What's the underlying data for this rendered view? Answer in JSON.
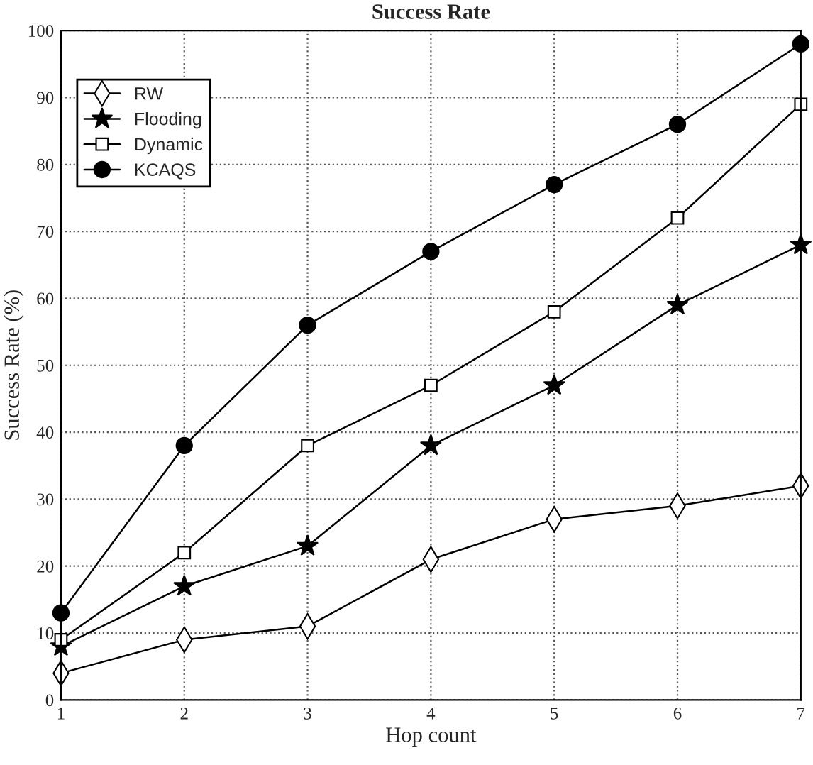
{
  "chart_data": {
    "type": "line",
    "title": "Success Rate",
    "xlabel": "Hop count",
    "ylabel": "Success Rate (%)",
    "x": [
      1,
      2,
      3,
      4,
      5,
      6,
      7
    ],
    "series": [
      {
        "name": "RW",
        "color": "#000000",
        "marker": "diamond",
        "values": [
          4,
          9,
          11,
          21,
          27,
          29,
          32
        ]
      },
      {
        "name": "Flooding",
        "color": "#000000",
        "marker": "star",
        "values": [
          8,
          17,
          23,
          38,
          47,
          59,
          68
        ]
      },
      {
        "name": "Dynamic",
        "color": "#000000",
        "marker": "square",
        "values": [
          9,
          22,
          38,
          47,
          58,
          72,
          89
        ]
      },
      {
        "name": "KCAQS",
        "color": "#000000",
        "marker": "circle",
        "values": [
          13,
          38,
          56,
          67,
          77,
          86,
          98
        ]
      }
    ],
    "xlim": [
      1,
      7
    ],
    "xticks": [
      1,
      2,
      3,
      4,
      5,
      6,
      7
    ],
    "ylim": [
      0,
      100
    ],
    "yticks": [
      0,
      10,
      20,
      30,
      40,
      50,
      60,
      70,
      80,
      90,
      100
    ],
    "grid": true,
    "legend": "top left",
    "line_style": "solid"
  }
}
